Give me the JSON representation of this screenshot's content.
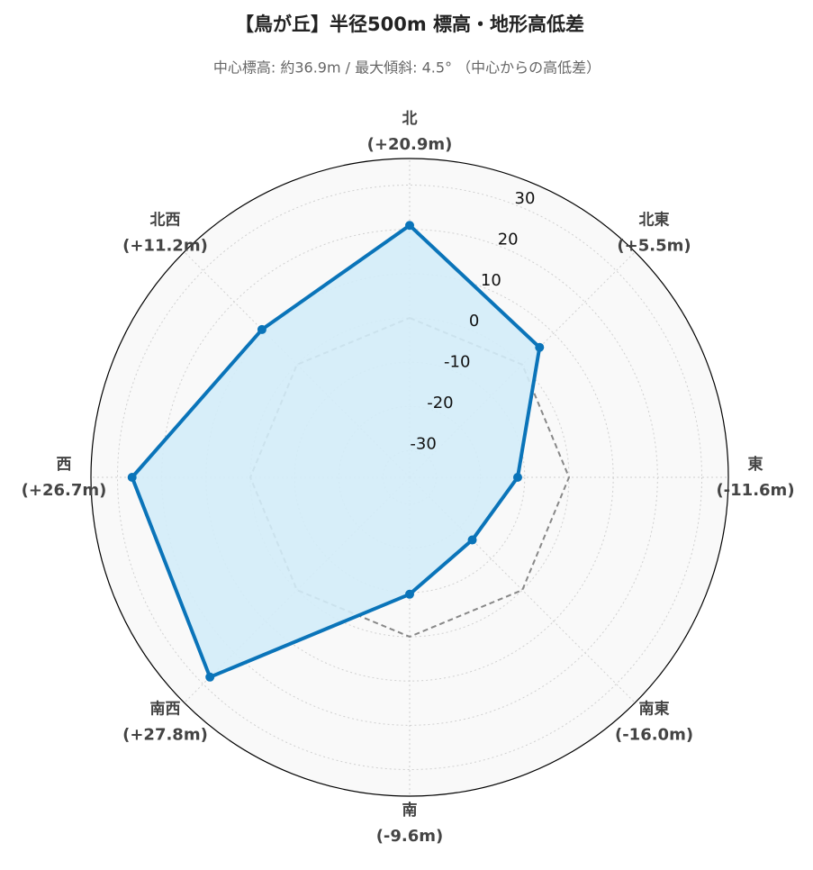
{
  "chart_data": {
    "type": "radar",
    "title": "【鳥が丘】半径500m 標高・地形高低差",
    "subtitle": "中心標高: 約36.9m / 最大傾斜: 4.5° （中心からの高低差）",
    "categories": [
      "北",
      "北東",
      "東",
      "南東",
      "南",
      "南西",
      "西",
      "北西"
    ],
    "values": [
      20.9,
      5.5,
      -11.6,
      -16.0,
      -9.6,
      27.8,
      26.7,
      11.2
    ],
    "value_labels": [
      "(+20.9m)",
      "(+5.5m)",
      "(-11.6m)",
      "(-16.0m)",
      "(-9.6m)",
      "(+27.8m)",
      "(+26.7m)",
      "(+11.2m)"
    ],
    "color": "#0a74b9",
    "fill_color": "#d3ecf8",
    "ylim": [
      -36,
      36
    ],
    "yticks": [
      -30,
      -20,
      -10,
      0,
      10,
      20,
      30
    ],
    "grid": true,
    "reference_line": {
      "value": 0,
      "color": "#888888"
    }
  }
}
